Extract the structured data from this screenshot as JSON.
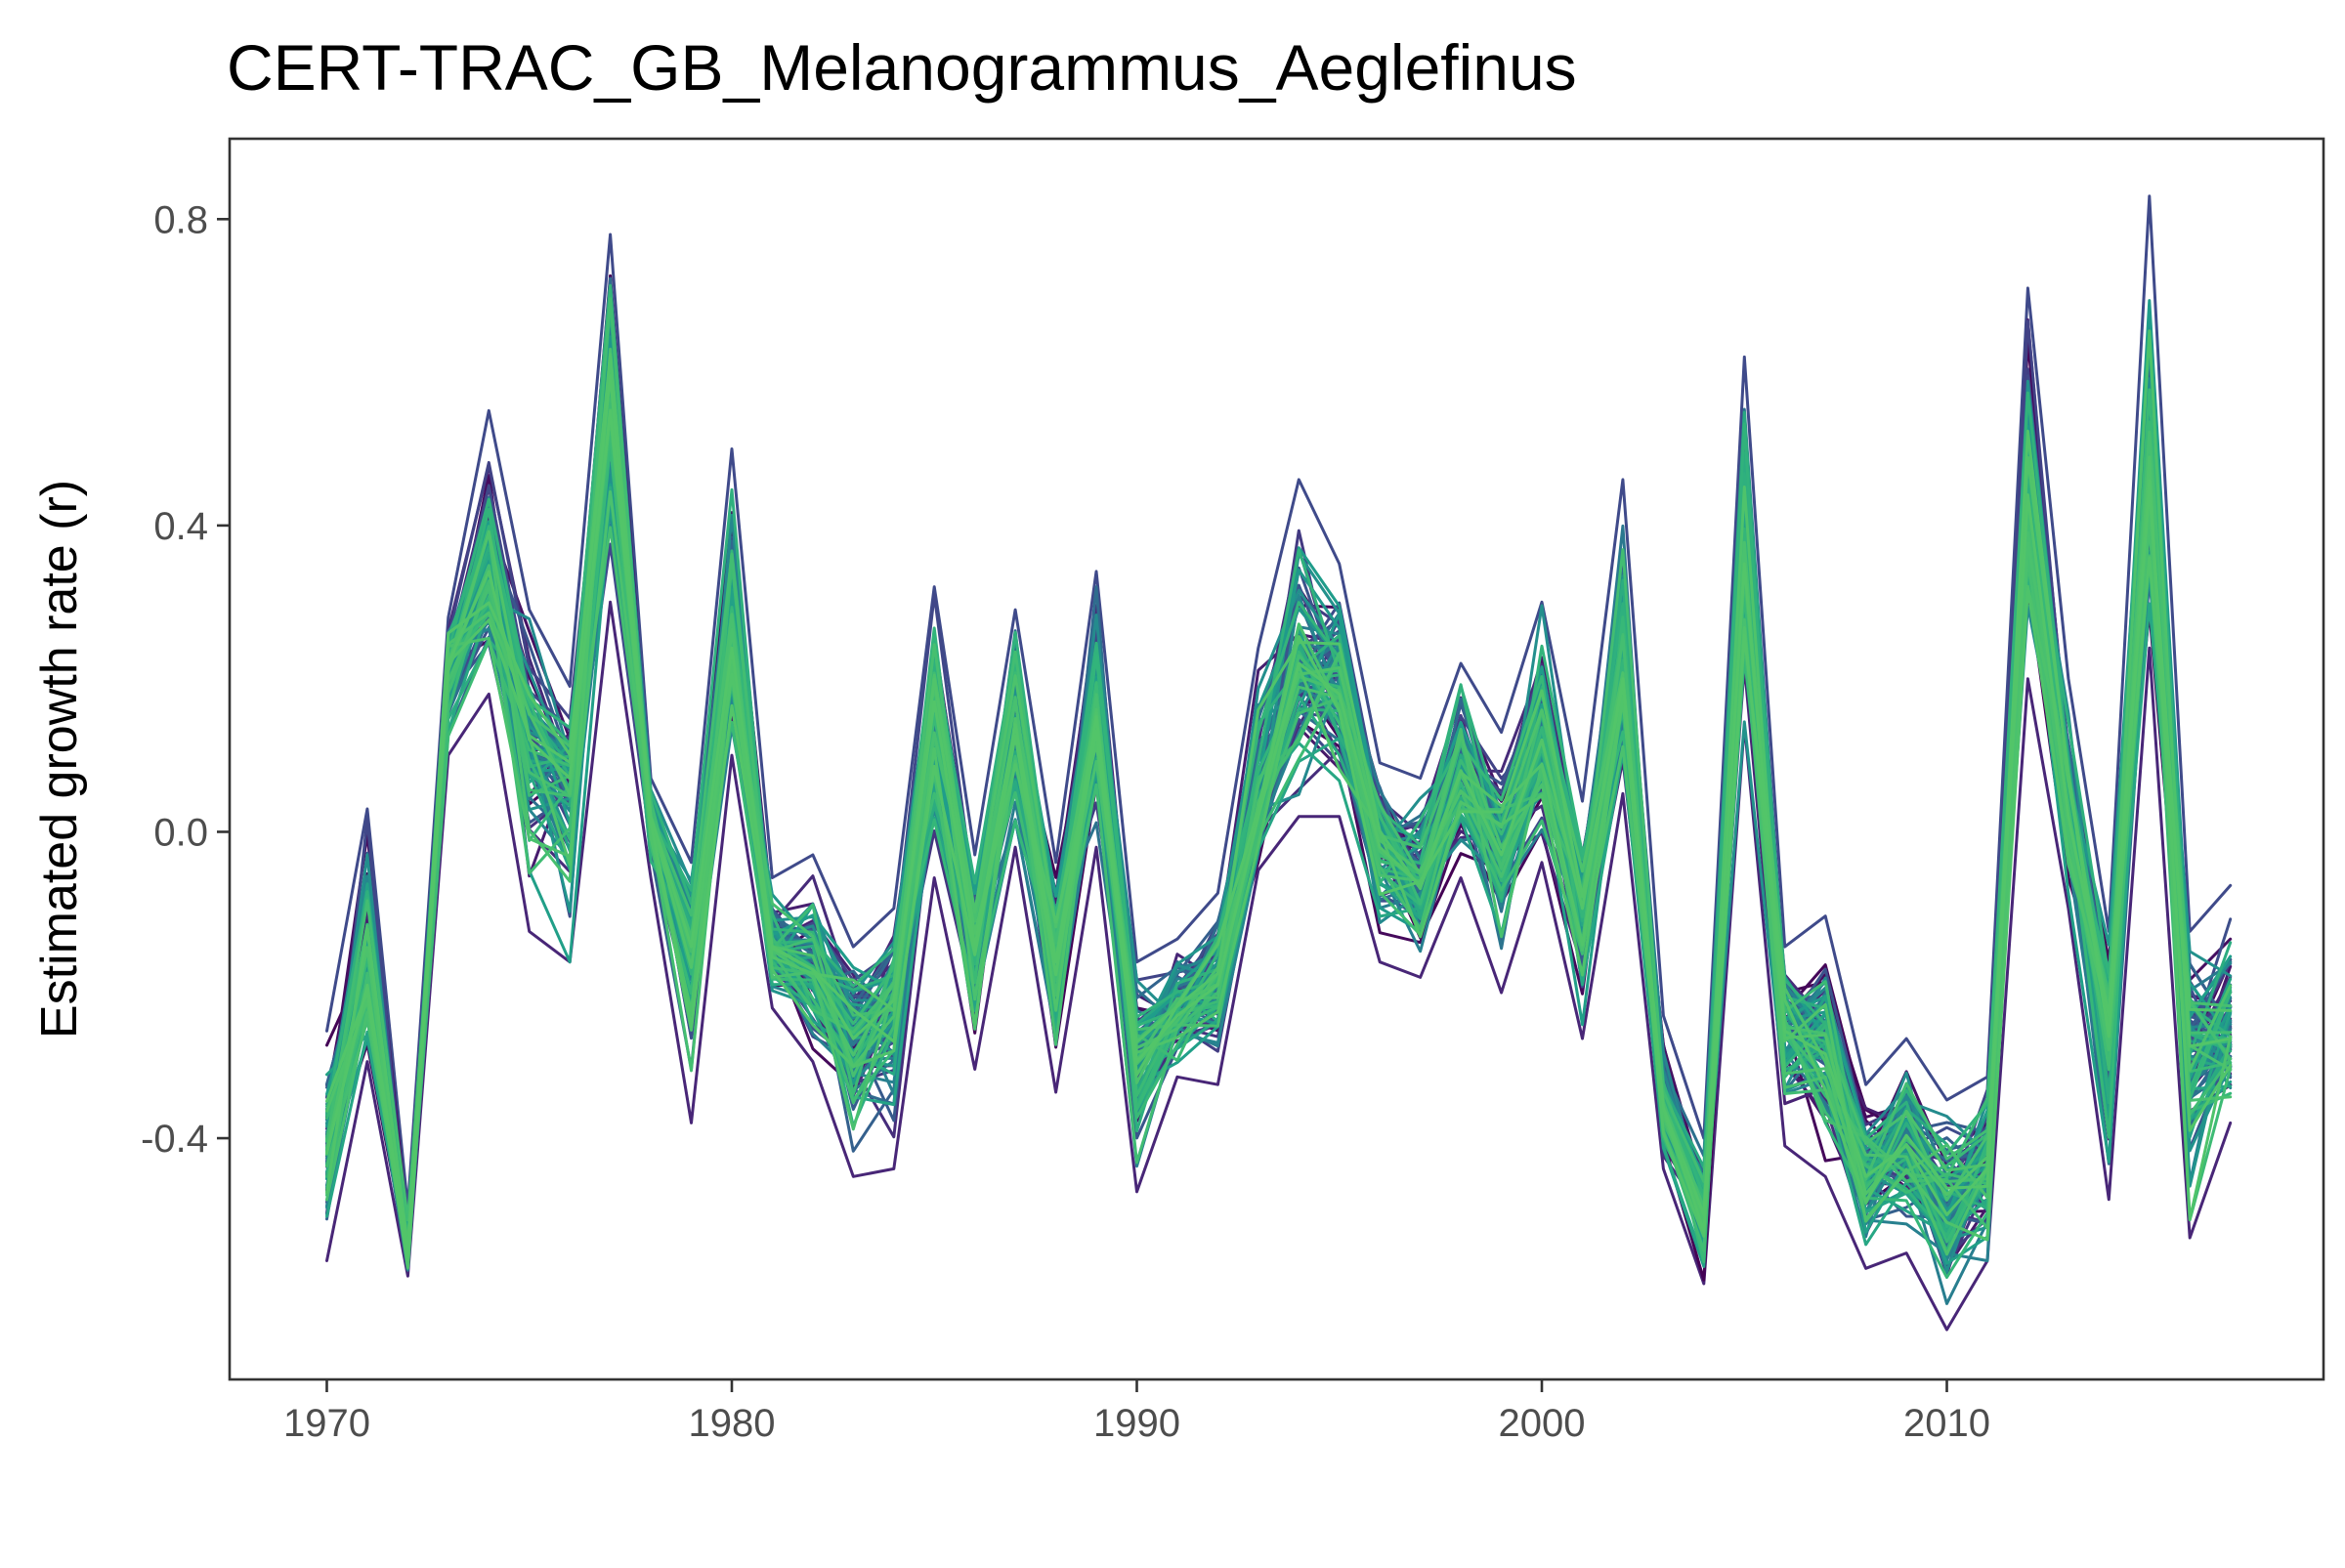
{
  "chart_data": {
    "type": "line",
    "title": "CERT-TRAC_GB_Melanogrammus_Aeglefinus",
    "xlabel": "",
    "ylabel": "Estimated growth rate (r)",
    "xlim": [
      1967.6,
      2019.3
    ],
    "ylim": [
      -0.715,
      0.905
    ],
    "x_ticks": [
      1970,
      1980,
      1990,
      2000,
      2010
    ],
    "x_tick_labels": [
      "1970",
      "1980",
      "1990",
      "2000",
      "2010"
    ],
    "y_ticks": [
      -0.4,
      0.0,
      0.4,
      0.8
    ],
    "y_tick_labels": [
      "-0.4",
      "0.0",
      "0.4",
      "0.8"
    ],
    "grid": false,
    "legend": "none",
    "ensemble_count": 100,
    "palette": [
      "#440154",
      "#482677",
      "#3f4a8a",
      "#31678e",
      "#26838f",
      "#1f9d8a",
      "#35b779",
      "#52c569"
    ],
    "x": [
      1970,
      1971,
      1972,
      1973,
      1974,
      1975,
      1976,
      1977,
      1978,
      1979,
      1980,
      1981,
      1982,
      1983,
      1984,
      1985,
      1986,
      1987,
      1988,
      1989,
      1990,
      1991,
      1992,
      1993,
      1994,
      1995,
      1996,
      1997,
      1998,
      1999,
      2000,
      2001,
      2002,
      2003,
      2004,
      2005,
      2006,
      2007,
      2008,
      2009,
      2010,
      2011,
      2012,
      2013,
      2014,
      2015,
      2016,
      2017
    ],
    "mean": [
      -0.42,
      -0.2,
      -0.55,
      0.22,
      0.34,
      0.12,
      0.07,
      0.55,
      0.02,
      -0.15,
      0.24,
      -0.15,
      -0.18,
      -0.27,
      -0.22,
      0.17,
      -0.15,
      0.14,
      -0.17,
      0.15,
      -0.3,
      -0.24,
      -0.2,
      0.02,
      0.22,
      0.18,
      -0.02,
      -0.07,
      0.08,
      -0.03,
      0.12,
      -0.1,
      0.2,
      -0.36,
      -0.5,
      0.35,
      -0.26,
      -0.29,
      -0.45,
      -0.41,
      -0.5,
      -0.44,
      0.44,
      0.02,
      -0.24,
      0.45,
      -0.28,
      -0.27
    ],
    "min": [
      -0.56,
      -0.3,
      -0.58,
      0.1,
      0.18,
      -0.13,
      -0.17,
      0.3,
      -0.06,
      -0.38,
      0.1,
      -0.23,
      -0.3,
      -0.45,
      -0.44,
      -0.06,
      -0.31,
      -0.02,
      -0.34,
      -0.02,
      -0.47,
      -0.32,
      -0.33,
      -0.05,
      0.02,
      0.02,
      -0.17,
      -0.19,
      -0.06,
      -0.21,
      -0.04,
      -0.27,
      0.05,
      -0.44,
      -0.59,
      0.14,
      -0.41,
      -0.45,
      -0.57,
      -0.55,
      -0.65,
      -0.56,
      0.2,
      -0.1,
      -0.48,
      0.24,
      -0.53,
      -0.38
    ],
    "max": [
      -0.26,
      0.03,
      -0.49,
      0.28,
      0.55,
      0.29,
      0.19,
      0.78,
      0.07,
      -0.04,
      0.5,
      -0.06,
      -0.03,
      -0.15,
      -0.1,
      0.32,
      -0.03,
      0.29,
      -0.04,
      0.34,
      -0.17,
      -0.14,
      -0.08,
      0.24,
      0.46,
      0.35,
      0.09,
      0.07,
      0.22,
      0.13,
      0.3,
      0.04,
      0.46,
      -0.24,
      -0.4,
      0.62,
      -0.15,
      -0.11,
      -0.33,
      -0.27,
      -0.35,
      -0.32,
      0.71,
      0.2,
      -0.13,
      0.83,
      -0.13,
      -0.07
    ]
  }
}
